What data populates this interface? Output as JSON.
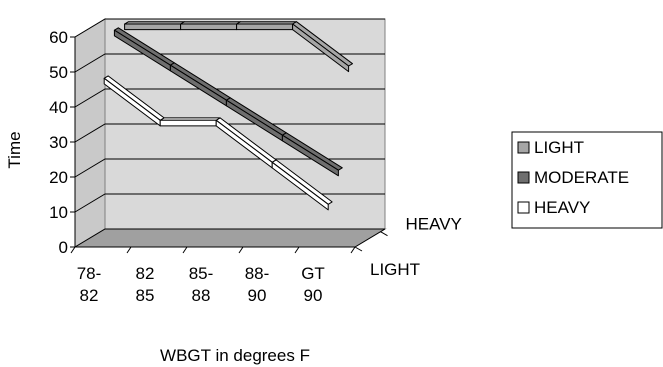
{
  "chart_data": {
    "type": "line",
    "subtype": "3d-ribbon",
    "title": "",
    "xlabel": "WBGT in degrees F",
    "ylabel": "Time",
    "zlabel": "",
    "categories": [
      "78-82",
      "82-85",
      "85-88",
      "88-90",
      "GT 90"
    ],
    "category_lines": [
      [
        "78-",
        "82"
      ],
      [
        "82",
        "85"
      ],
      [
        "85-",
        "88"
      ],
      [
        "88-",
        "90"
      ],
      [
        "GT",
        "90"
      ]
    ],
    "depth_categories": [
      "LIGHT",
      "HEAVY"
    ],
    "y_ticks": [
      "0",
      "10",
      "20",
      "30",
      "40",
      "50",
      "60"
    ],
    "ylim": [
      0,
      60
    ],
    "grid": true,
    "legend_position": "right",
    "series": [
      {
        "name": "LIGHT",
        "color": "#a6a6a6",
        "values": [
          60,
          60,
          60,
          60,
          48
        ]
      },
      {
        "name": "MODERATE",
        "color": "#6e6e6e",
        "values": [
          60,
          50,
          40,
          30,
          20
        ]
      },
      {
        "name": "HEAVY",
        "color": "#ffffff",
        "values": [
          48,
          36,
          36,
          24,
          12
        ]
      }
    ]
  }
}
